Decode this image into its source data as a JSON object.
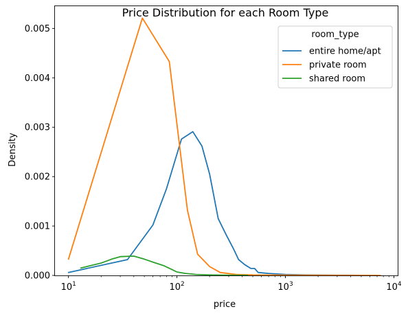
{
  "chart_data": {
    "type": "line",
    "title": "Price Distribution for each Room Type",
    "xlabel": "price",
    "ylabel": "Density",
    "x_scale": "log",
    "xlim": [
      7.5,
      11000
    ],
    "ylim": [
      0,
      0.00545
    ],
    "x_ticks": [
      {
        "value": 10,
        "base": "10",
        "exp": "1"
      },
      {
        "value": 100,
        "base": "10",
        "exp": "2"
      },
      {
        "value": 1000,
        "base": "10",
        "exp": "3"
      },
      {
        "value": 10000,
        "base": "10",
        "exp": "4"
      }
    ],
    "y_ticks": [
      {
        "value": 0,
        "label": "0.000"
      },
      {
        "value": 0.001,
        "label": "0.001"
      },
      {
        "value": 0.002,
        "label": "0.002"
      },
      {
        "value": 0.003,
        "label": "0.003"
      },
      {
        "value": 0.004,
        "label": "0.004"
      },
      {
        "value": 0.005,
        "label": "0.005"
      }
    ],
    "grid": false,
    "legend": {
      "title": "room_type",
      "placement": "top-right"
    },
    "series": [
      {
        "name": "entire home/apt",
        "color": "#1f77b4",
        "points": [
          [
            10,
            6e-05
          ],
          [
            35,
            0.00032
          ],
          [
            60,
            0.00102
          ],
          [
            80,
            0.00175
          ],
          [
            110,
            0.00276
          ],
          [
            140,
            0.00291
          ],
          [
            170,
            0.00262
          ],
          [
            200,
            0.00205
          ],
          [
            240,
            0.00115
          ],
          [
            280,
            0.00085
          ],
          [
            330,
            0.00055
          ],
          [
            370,
            0.00032
          ],
          [
            420,
            0.00022
          ],
          [
            480,
            0.00014
          ],
          [
            520,
            0.00014
          ],
          [
            560,
            6e-05
          ],
          [
            700,
            4e-05
          ],
          [
            1000,
            2e-05
          ],
          [
            1500,
            1e-05
          ],
          [
            3000,
            5e-06
          ],
          [
            5000,
            3e-06
          ],
          [
            7500,
            2e-06
          ]
        ]
      },
      {
        "name": "private room",
        "color": "#ff7f0e",
        "points": [
          [
            10,
            0.00033
          ],
          [
            48,
            0.00521
          ],
          [
            85,
            0.00433
          ],
          [
            125,
            0.00132
          ],
          [
            155,
            0.00043
          ],
          [
            200,
            0.00018
          ],
          [
            250,
            6e-05
          ],
          [
            350,
            2e-05
          ],
          [
            500,
            1e-05
          ],
          [
            1000,
            5e-06
          ],
          [
            5000,
            1e-06
          ],
          [
            7500,
            1e-06
          ]
        ]
      },
      {
        "name": "shared room",
        "color": "#2ca02c",
        "points": [
          [
            13,
            0.00015
          ],
          [
            20,
            0.00025
          ],
          [
            25,
            0.00033
          ],
          [
            30,
            0.00038
          ],
          [
            40,
            0.00039
          ],
          [
            50,
            0.00033
          ],
          [
            60,
            0.00027
          ],
          [
            75,
            0.0002
          ],
          [
            90,
            0.00012
          ],
          [
            100,
            7e-05
          ],
          [
            120,
            4e-05
          ],
          [
            150,
            2e-05
          ],
          [
            200,
            1e-05
          ],
          [
            300,
            4e-06
          ],
          [
            450,
            2e-06
          ]
        ]
      }
    ]
  }
}
